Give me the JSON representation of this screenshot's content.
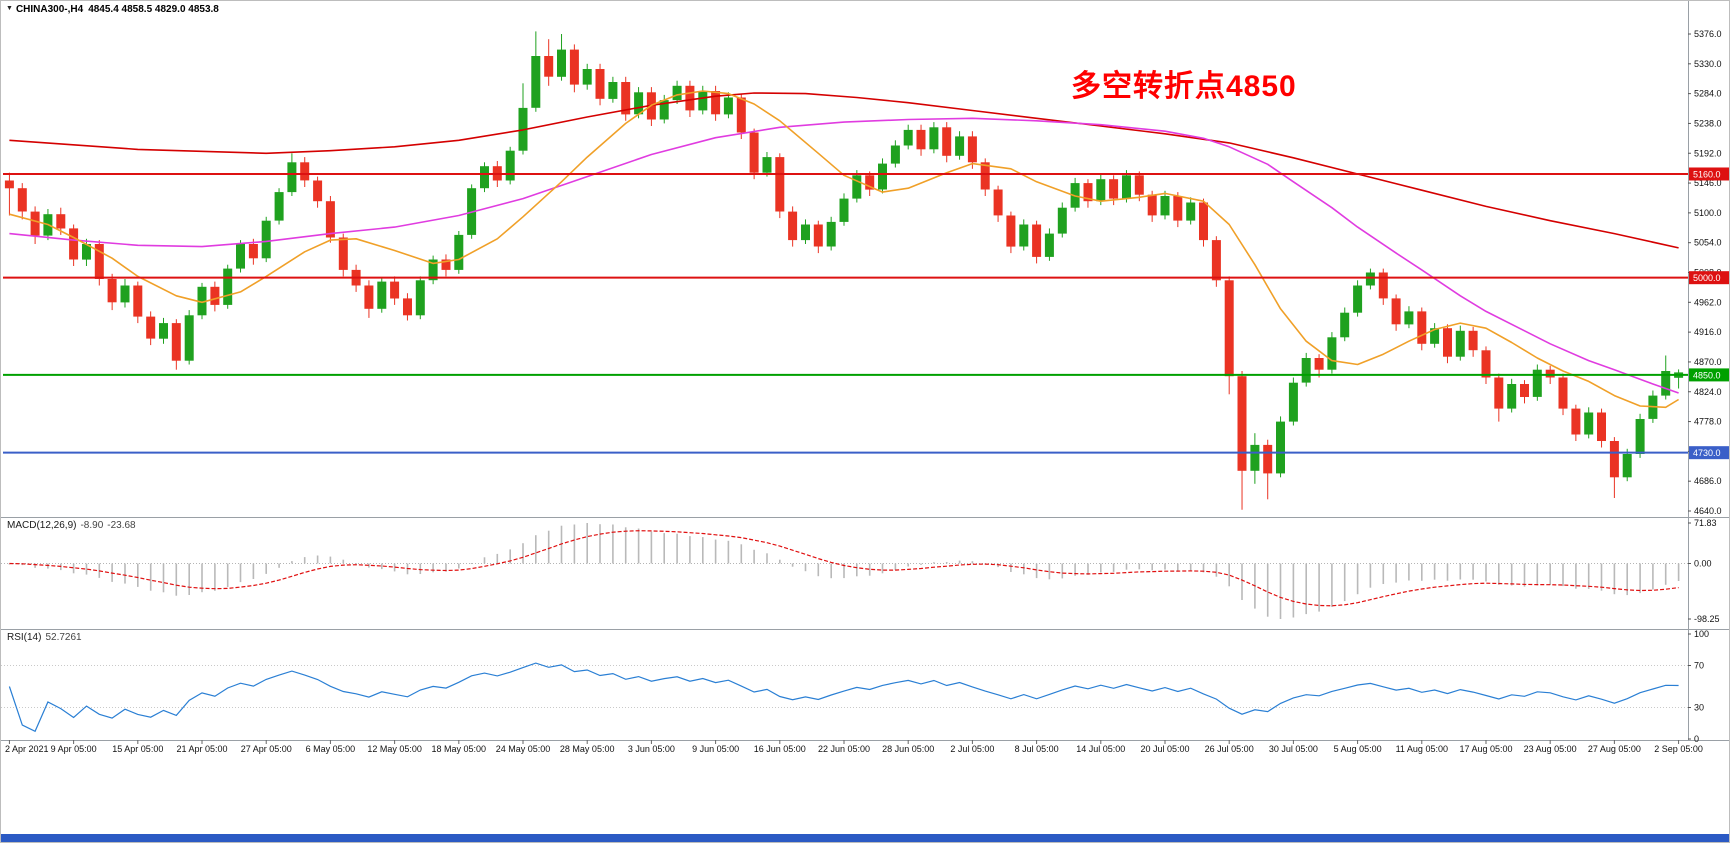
{
  "header": {
    "symbol": "CHINA300-,H4",
    "ohlc": "4845.4 4858.5 4829.0 4853.8"
  },
  "annotation": {
    "text": "多空转折点4850",
    "color": "#ff0000"
  },
  "colors": {
    "candle_up": "#1fa11f",
    "candle_down": "#ea3323",
    "macd_hist": "#b9b9b9",
    "macd_signal": "#e01010",
    "rsi_line": "#2a7fd4",
    "annotation": "#ff0000",
    "taskbar": "#2b5ac4"
  },
  "chart_data": {
    "type": "candlestick",
    "symbol": "CHINA300-",
    "timeframe": "H4",
    "title": "CHINA300-,H4",
    "current_bar": {
      "open": 4845.4,
      "high": 4858.5,
      "low": 4829.0,
      "close": 4853.8
    },
    "ylim": [
      4640.0,
      5376.0
    ],
    "grid": "off",
    "price_axis_ticks": [
      5376,
      5330,
      5284,
      5238,
      5192,
      5146,
      5100,
      5054,
      5008,
      4962,
      4916,
      4870,
      4824,
      4778,
      4732,
      4686,
      4640
    ],
    "x_labels": [
      "2 Apr 2021",
      "9 Apr 05:00",
      "15 Apr 05:00",
      "21 Apr 05:00",
      "27 Apr 05:00",
      "6 May 05:00",
      "12 May 05:00",
      "18 May 05:00",
      "24 May 05:00",
      "28 May 05:00",
      "3 Jun 05:00",
      "9 Jun 05:00",
      "16 Jun 05:00",
      "22 Jun 05:00",
      "28 Jun 05:00",
      "2 Jul 05:00",
      "8 Jul 05:00",
      "14 Jul 05:00",
      "20 Jul 05:00",
      "26 Jul 05:00",
      "30 Jul 05:00",
      "5 Aug 05:00",
      "11 Aug 05:00",
      "17 Aug 05:00",
      "23 Aug 05:00",
      "27 Aug 05:00",
      "2 Sep 05:00"
    ],
    "candles_per_label": 5,
    "candles": [
      [
        5150,
        5162,
        5096,
        5138
      ],
      [
        5138,
        5146,
        5090,
        5102
      ],
      [
        5102,
        5110,
        5052,
        5065
      ],
      [
        5065,
        5106,
        5058,
        5098
      ],
      [
        5098,
        5108,
        5066,
        5076
      ],
      [
        5076,
        5082,
        5018,
        5028
      ],
      [
        5028,
        5060,
        5018,
        5052
      ],
      [
        5052,
        5058,
        4988,
        4998
      ],
      [
        4998,
        5006,
        4950,
        4962
      ],
      [
        4962,
        4998,
        4954,
        4988
      ],
      [
        4988,
        4994,
        4930,
        4940
      ],
      [
        4940,
        4948,
        4896,
        4906
      ],
      [
        4906,
        4938,
        4898,
        4930
      ],
      [
        4930,
        4936,
        4858,
        4872
      ],
      [
        4872,
        4950,
        4866,
        4942
      ],
      [
        4942,
        4992,
        4936,
        4986
      ],
      [
        4986,
        4994,
        4948,
        4958
      ],
      [
        4958,
        5020,
        4952,
        5014
      ],
      [
        5014,
        5058,
        5008,
        5052
      ],
      [
        5052,
        5060,
        5020,
        5030
      ],
      [
        5030,
        5094,
        5024,
        5088
      ],
      [
        5088,
        5138,
        5082,
        5132
      ],
      [
        5132,
        5192,
        5126,
        5178
      ],
      [
        5178,
        5186,
        5140,
        5150
      ],
      [
        5150,
        5156,
        5108,
        5118
      ],
      [
        5118,
        5126,
        5054,
        5062
      ],
      [
        5062,
        5068,
        5002,
        5012
      ],
      [
        5012,
        5020,
        4978,
        4988
      ],
      [
        4988,
        4996,
        4938,
        4952
      ],
      [
        4952,
        5000,
        4946,
        4994
      ],
      [
        4994,
        5002,
        4958,
        4968
      ],
      [
        4968,
        4976,
        4934,
        4942
      ],
      [
        4942,
        5002,
        4936,
        4996
      ],
      [
        4996,
        5034,
        4990,
        5028
      ],
      [
        5028,
        5036,
        5002,
        5012
      ],
      [
        5012,
        5072,
        5006,
        5066
      ],
      [
        5066,
        5144,
        5060,
        5138
      ],
      [
        5138,
        5178,
        5132,
        5172
      ],
      [
        5172,
        5180,
        5140,
        5150
      ],
      [
        5150,
        5202,
        5144,
        5196
      ],
      [
        5196,
        5300,
        5190,
        5262
      ],
      [
        5262,
        5380,
        5256,
        5342
      ],
      [
        5342,
        5368,
        5296,
        5310
      ],
      [
        5310,
        5376,
        5304,
        5352
      ],
      [
        5352,
        5360,
        5286,
        5298
      ],
      [
        5298,
        5330,
        5290,
        5322
      ],
      [
        5322,
        5330,
        5266,
        5276
      ],
      [
        5276,
        5310,
        5270,
        5302
      ],
      [
        5302,
        5310,
        5242,
        5252
      ],
      [
        5252,
        5294,
        5246,
        5286
      ],
      [
        5286,
        5294,
        5234,
        5244
      ],
      [
        5244,
        5282,
        5238,
        5274
      ],
      [
        5274,
        5304,
        5268,
        5296
      ],
      [
        5296,
        5304,
        5248,
        5258
      ],
      [
        5258,
        5296,
        5252,
        5288
      ],
      [
        5288,
        5296,
        5242,
        5252
      ],
      [
        5252,
        5286,
        5246,
        5278
      ],
      [
        5278,
        5284,
        5214,
        5224
      ],
      [
        5224,
        5230,
        5152,
        5162
      ],
      [
        5162,
        5194,
        5156,
        5186
      ],
      [
        5186,
        5192,
        5092,
        5102
      ],
      [
        5102,
        5110,
        5048,
        5058
      ],
      [
        5058,
        5090,
        5052,
        5082
      ],
      [
        5082,
        5088,
        5038,
        5048
      ],
      [
        5048,
        5094,
        5042,
        5086
      ],
      [
        5086,
        5130,
        5080,
        5122
      ],
      [
        5122,
        5166,
        5116,
        5158
      ],
      [
        5158,
        5164,
        5126,
        5136
      ],
      [
        5136,
        5184,
        5130,
        5176
      ],
      [
        5176,
        5212,
        5170,
        5204
      ],
      [
        5204,
        5236,
        5198,
        5228
      ],
      [
        5228,
        5236,
        5188,
        5198
      ],
      [
        5198,
        5240,
        5192,
        5232
      ],
      [
        5232,
        5240,
        5178,
        5188
      ],
      [
        5188,
        5226,
        5182,
        5218
      ],
      [
        5218,
        5226,
        5168,
        5178
      ],
      [
        5178,
        5184,
        5126,
        5136
      ],
      [
        5136,
        5142,
        5086,
        5096
      ],
      [
        5096,
        5102,
        5038,
        5048
      ],
      [
        5048,
        5090,
        5042,
        5082
      ],
      [
        5082,
        5088,
        5022,
        5032
      ],
      [
        5032,
        5076,
        5026,
        5068
      ],
      [
        5068,
        5116,
        5062,
        5108
      ],
      [
        5108,
        5154,
        5102,
        5146
      ],
      [
        5146,
        5152,
        5108,
        5118
      ],
      [
        5118,
        5160,
        5112,
        5152
      ],
      [
        5152,
        5158,
        5112,
        5122
      ],
      [
        5122,
        5166,
        5116,
        5158
      ],
      [
        5158,
        5164,
        5118,
        5128
      ],
      [
        5128,
        5134,
        5086,
        5096
      ],
      [
        5096,
        5134,
        5090,
        5126
      ],
      [
        5126,
        5132,
        5078,
        5088
      ],
      [
        5088,
        5124,
        5082,
        5116
      ],
      [
        5116,
        5122,
        5048,
        5058
      ],
      [
        5058,
        5064,
        4986,
        4996
      ],
      [
        4996,
        5002,
        4820,
        4848
      ],
      [
        4848,
        4856,
        4642,
        4702
      ],
      [
        4702,
        4760,
        4682,
        4742
      ],
      [
        4742,
        4750,
        4658,
        4698
      ],
      [
        4698,
        4786,
        4692,
        4778
      ],
      [
        4778,
        4846,
        4772,
        4838
      ],
      [
        4838,
        4884,
        4832,
        4876
      ],
      [
        4876,
        4882,
        4846,
        4858
      ],
      [
        4858,
        4916,
        4852,
        4908
      ],
      [
        4908,
        4954,
        4902,
        4946
      ],
      [
        4946,
        4996,
        4940,
        4988
      ],
      [
        4988,
        5014,
        4982,
        5008
      ],
      [
        5008,
        5014,
        4958,
        4968
      ],
      [
        4968,
        4974,
        4918,
        4928
      ],
      [
        4928,
        4956,
        4922,
        4948
      ],
      [
        4948,
        4954,
        4888,
        4898
      ],
      [
        4898,
        4930,
        4892,
        4922
      ],
      [
        4922,
        4928,
        4868,
        4878
      ],
      [
        4878,
        4926,
        4872,
        4918
      ],
      [
        4918,
        4924,
        4878,
        4888
      ],
      [
        4888,
        4894,
        4836,
        4846
      ],
      [
        4846,
        4852,
        4778,
        4798
      ],
      [
        4798,
        4844,
        4792,
        4836
      ],
      [
        4836,
        4842,
        4806,
        4816
      ],
      [
        4816,
        4866,
        4810,
        4858
      ],
      [
        4858,
        4864,
        4836,
        4846
      ],
      [
        4846,
        4852,
        4788,
        4798
      ],
      [
        4798,
        4804,
        4748,
        4758
      ],
      [
        4758,
        4800,
        4752,
        4792
      ],
      [
        4792,
        4798,
        4738,
        4748
      ],
      [
        4748,
        4754,
        4660,
        4692
      ],
      [
        4692,
        4736,
        4686,
        4728
      ],
      [
        4728,
        4790,
        4722,
        4782
      ],
      [
        4782,
        4826,
        4776,
        4818
      ],
      [
        4818,
        4880,
        4812,
        4856
      ],
      [
        4845.4,
        4858.5,
        4829.0,
        4853.8
      ]
    ],
    "ma_lines": [
      {
        "name": "ma-slow-red",
        "color": "#d40000",
        "points": [
          [
            0,
            5212
          ],
          [
            10,
            5198
          ],
          [
            20,
            5192
          ],
          [
            25,
            5196
          ],
          [
            30,
            5202
          ],
          [
            35,
            5212
          ],
          [
            40,
            5228
          ],
          [
            45,
            5248
          ],
          [
            50,
            5266
          ],
          [
            55,
            5280
          ],
          [
            58,
            5285
          ],
          [
            62,
            5284
          ],
          [
            66,
            5278
          ],
          [
            70,
            5270
          ],
          [
            75,
            5258
          ],
          [
            80,
            5246
          ],
          [
            85,
            5234
          ],
          [
            90,
            5222
          ],
          [
            95,
            5208
          ],
          [
            100,
            5185
          ],
          [
            105,
            5160
          ],
          [
            110,
            5135
          ],
          [
            115,
            5110
          ],
          [
            120,
            5088
          ],
          [
            125,
            5068
          ],
          [
            130,
            5046
          ]
        ]
      },
      {
        "name": "ma-mid-magenta",
        "color": "#e03ce0",
        "points": [
          [
            0,
            5068
          ],
          [
            5,
            5058
          ],
          [
            10,
            5050
          ],
          [
            15,
            5048
          ],
          [
            20,
            5056
          ],
          [
            25,
            5068
          ],
          [
            30,
            5078
          ],
          [
            35,
            5096
          ],
          [
            40,
            5122
          ],
          [
            45,
            5156
          ],
          [
            50,
            5190
          ],
          [
            55,
            5216
          ],
          [
            60,
            5232
          ],
          [
            65,
            5240
          ],
          [
            70,
            5244
          ],
          [
            75,
            5246
          ],
          [
            80,
            5242
          ],
          [
            85,
            5236
          ],
          [
            90,
            5226
          ],
          [
            93,
            5215
          ],
          [
            95,
            5202
          ],
          [
            98,
            5175
          ],
          [
            100,
            5148
          ],
          [
            103,
            5108
          ],
          [
            105,
            5078
          ],
          [
            108,
            5038
          ],
          [
            110,
            5012
          ],
          [
            113,
            4972
          ],
          [
            115,
            4948
          ],
          [
            118,
            4918
          ],
          [
            120,
            4898
          ],
          [
            123,
            4872
          ],
          [
            125,
            4858
          ],
          [
            128,
            4836
          ],
          [
            130,
            4822
          ]
        ]
      },
      {
        "name": "ma-fast-orange",
        "color": "#f0a028",
        "points": [
          [
            0,
            5098
          ],
          [
            3,
            5082
          ],
          [
            5,
            5062
          ],
          [
            8,
            5030
          ],
          [
            10,
            5002
          ],
          [
            13,
            4972
          ],
          [
            15,
            4962
          ],
          [
            18,
            4978
          ],
          [
            20,
            5002
          ],
          [
            23,
            5040
          ],
          [
            25,
            5058
          ],
          [
            27,
            5060
          ],
          [
            30,
            5042
          ],
          [
            33,
            5022
          ],
          [
            35,
            5028
          ],
          [
            38,
            5060
          ],
          [
            40,
            5094
          ],
          [
            43,
            5148
          ],
          [
            45,
            5186
          ],
          [
            48,
            5238
          ],
          [
            50,
            5266
          ],
          [
            52,
            5282
          ],
          [
            54,
            5288
          ],
          [
            56,
            5284
          ],
          [
            58,
            5268
          ],
          [
            60,
            5242
          ],
          [
            63,
            5192
          ],
          [
            65,
            5158
          ],
          [
            68,
            5132
          ],
          [
            70,
            5138
          ],
          [
            73,
            5162
          ],
          [
            75,
            5176
          ],
          [
            78,
            5168
          ],
          [
            80,
            5148
          ],
          [
            83,
            5126
          ],
          [
            85,
            5118
          ],
          [
            88,
            5124
          ],
          [
            90,
            5130
          ],
          [
            93,
            5118
          ],
          [
            95,
            5082
          ],
          [
            97,
            5020
          ],
          [
            99,
            4952
          ],
          [
            101,
            4902
          ],
          [
            103,
            4872
          ],
          [
            105,
            4866
          ],
          [
            107,
            4882
          ],
          [
            109,
            4902
          ],
          [
            111,
            4920
          ],
          [
            113,
            4930
          ],
          [
            115,
            4922
          ],
          [
            117,
            4900
          ],
          [
            119,
            4876
          ],
          [
            121,
            4856
          ],
          [
            123,
            4840
          ],
          [
            125,
            4818
          ],
          [
            127,
            4802
          ],
          [
            129,
            4800
          ],
          [
            130,
            4812
          ]
        ]
      }
    ],
    "hlines": [
      {
        "price": 5160.0,
        "label": "5160.0",
        "color": "#dd1111"
      },
      {
        "price": 5000.0,
        "label": "5000.0",
        "color": "#dd1111"
      },
      {
        "price": 4850.0,
        "label": "4850.0",
        "color": "#00a000"
      },
      {
        "price": 4730.0,
        "label": "4730.0",
        "color": "#3a5fc8"
      }
    ],
    "macd": {
      "label": "MACD(12,26,9)",
      "value_main": "-8.90",
      "value_signal": "-23.68",
      "params": {
        "fast": 12,
        "slow": 26,
        "signal": 9
      },
      "axis_labels": [
        "71.83",
        "0.00",
        "-98.25"
      ]
    },
    "rsi": {
      "label": "RSI(14)",
      "value": "52.7261",
      "period": 14,
      "levels": [
        70,
        30
      ],
      "axis_labels": [
        "100",
        "70",
        "30",
        "0"
      ]
    }
  }
}
